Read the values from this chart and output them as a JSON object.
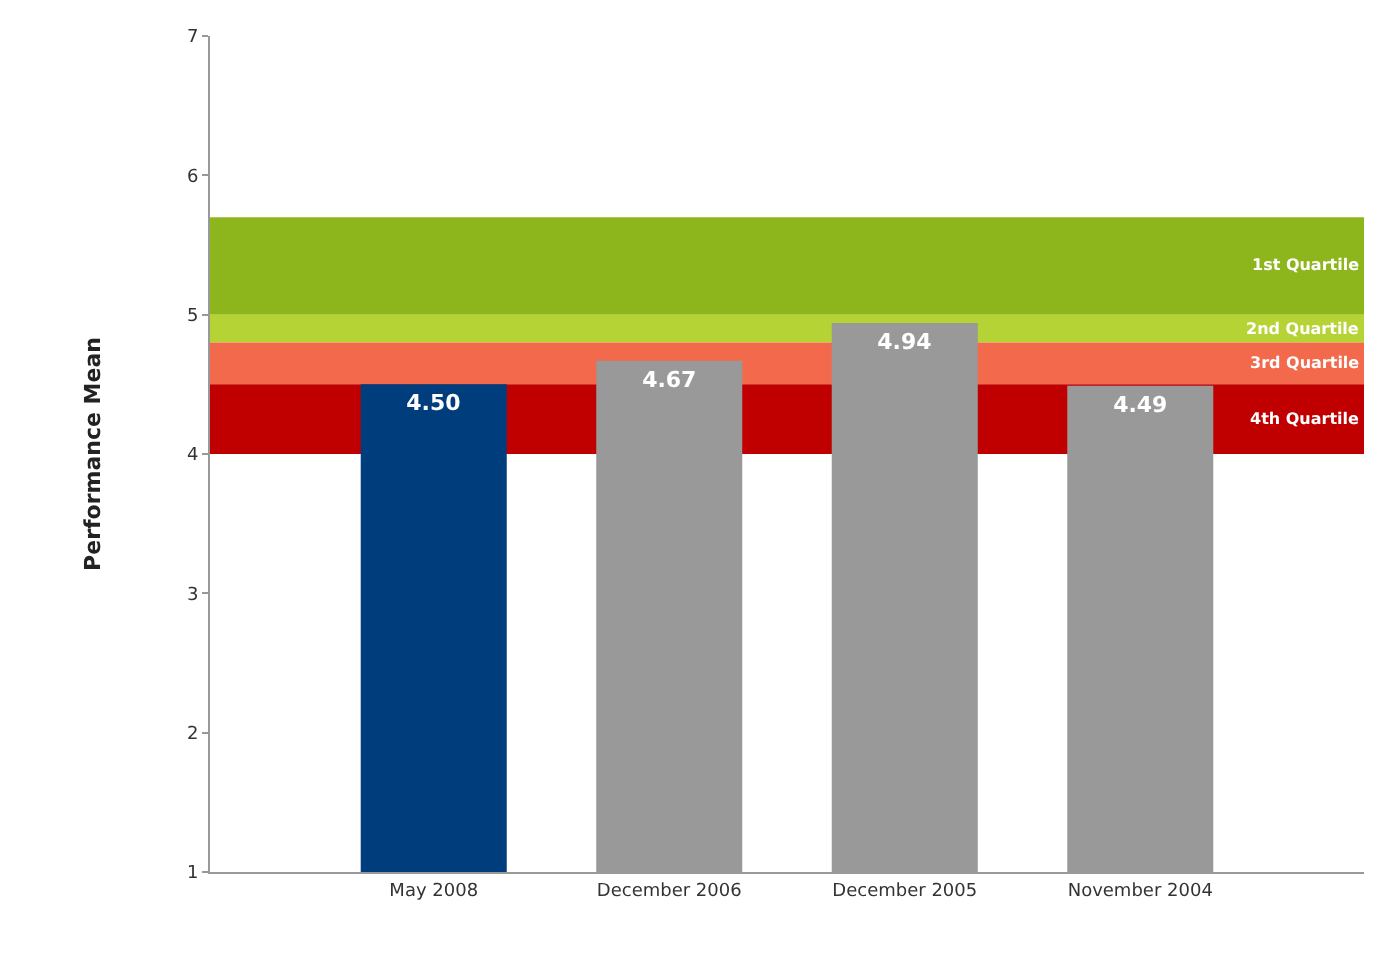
{
  "chart_data": {
    "type": "bar",
    "ylabel": "Performance Mean",
    "categories": [
      "May 2008",
      "December 2006",
      "December 2005",
      "November 2004"
    ],
    "values": [
      4.5,
      4.67,
      4.94,
      4.49
    ],
    "colors": [
      "#003d7d",
      "#999999",
      "#999999",
      "#999999"
    ],
    "value_labels": [
      "4.50",
      "4.67",
      "4.94",
      "4.49"
    ],
    "ylim": [
      1,
      7
    ],
    "yticks": [
      1,
      2,
      3,
      4,
      5,
      6,
      7
    ],
    "grid": false,
    "bands": [
      {
        "axis": "y",
        "from": 5.0,
        "to": 5.7,
        "label": "1st Quartile",
        "color": "#8db61c"
      },
      {
        "axis": "y",
        "from": 4.8,
        "to": 5.0,
        "label": "2nd Quartile",
        "color": "#b5d334"
      },
      {
        "axis": "y",
        "from": 4.5,
        "to": 4.8,
        "label": "3rd Quartile",
        "color": "#f26a4b"
      },
      {
        "axis": "y",
        "from": 4.0,
        "to": 4.5,
        "label": "4th Quartile",
        "color": "#c00000"
      }
    ]
  }
}
